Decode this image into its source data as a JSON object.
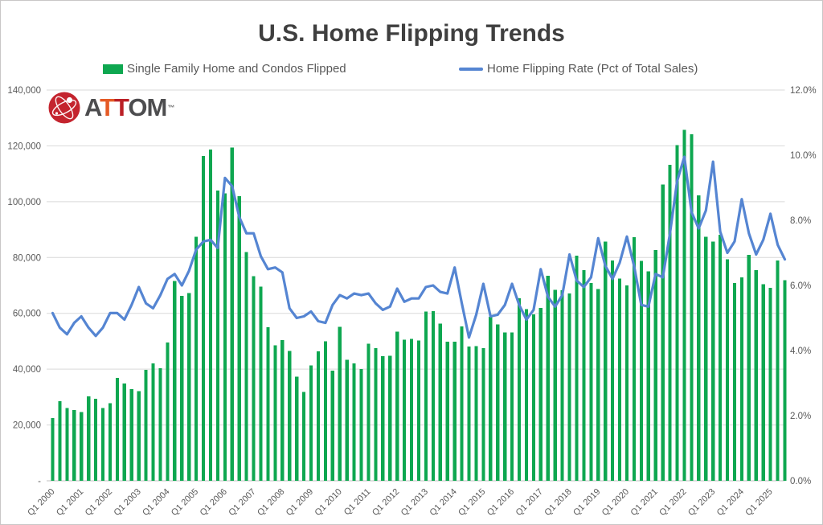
{
  "style": {
    "background": "#ffffff",
    "border_color": "#c9c7c7",
    "grid_color": "#d9d9d9",
    "baseline_color": "#c2c2c2",
    "axis_text_color": "#595959",
    "title_color": "#3f3f3f",
    "bar_color": "#0ea750",
    "line_color": "#5585d2"
  },
  "branding": {
    "logo_letters": [
      {
        "ch": "A",
        "color": "#4d4d4f"
      },
      {
        "ch": "T",
        "color": "#e55b26"
      },
      {
        "ch": "T",
        "color": "#bb2026"
      },
      {
        "ch": "O",
        "color": "#4d4d4f"
      },
      {
        "ch": "M",
        "color": "#4d4d4f"
      }
    ],
    "trademark": "™",
    "icon_color": "#c4242e"
  },
  "chart_data": {
    "type": "combo-bar-line",
    "title": "U.S. Home Flipping Trends",
    "grid": true,
    "legend_position": "top",
    "x_tick_every": 4,
    "left_axis": {
      "min": 0,
      "max": 140000,
      "step": 20000,
      "tick_labels_bottom_to_top": [
        "-",
        "20,000",
        "40,000",
        "60,000",
        "80,000",
        "100,000",
        "120,000",
        "140,000"
      ]
    },
    "right_axis": {
      "min": 0,
      "max": 12,
      "step": 2,
      "tick_labels_bottom_to_top": [
        "0.0%",
        "2.0%",
        "4.0%",
        "6.0%",
        "8.0%",
        "10.0%",
        "12.0%"
      ]
    },
    "categories": [
      "Q1 2000",
      "Q2 2000",
      "Q3 2000",
      "Q4 2000",
      "Q1 2001",
      "Q2 2001",
      "Q3 2001",
      "Q4 2001",
      "Q1 2002",
      "Q2 2002",
      "Q3 2002",
      "Q4 2002",
      "Q1 2003",
      "Q2 2003",
      "Q3 2003",
      "Q4 2003",
      "Q1 2004",
      "Q2 2004",
      "Q3 2004",
      "Q4 2004",
      "Q1 2005",
      "Q2 2005",
      "Q3 2005",
      "Q4 2005",
      "Q1 2006",
      "Q2 2006",
      "Q3 2006",
      "Q4 2006",
      "Q1 2007",
      "Q2 2007",
      "Q3 2007",
      "Q4 2007",
      "Q1 2008",
      "Q2 2008",
      "Q3 2008",
      "Q4 2008",
      "Q1 2009",
      "Q2 2009",
      "Q3 2009",
      "Q4 2009",
      "Q1 2010",
      "Q2 2010",
      "Q3 2010",
      "Q4 2010",
      "Q1 2011",
      "Q2 2011",
      "Q3 2011",
      "Q4 2011",
      "Q1 2012",
      "Q2 2012",
      "Q3 2012",
      "Q4 2012",
      "Q1 2013",
      "Q2 2013",
      "Q3 2013",
      "Q4 2013",
      "Q1 2014",
      "Q2 2014",
      "Q3 2014",
      "Q4 2014",
      "Q1 2015",
      "Q2 2015",
      "Q3 2015",
      "Q4 2015",
      "Q1 2016",
      "Q2 2016",
      "Q3 2016",
      "Q4 2016",
      "Q1 2017",
      "Q2 2017",
      "Q3 2017",
      "Q4 2017",
      "Q1 2018",
      "Q2 2018",
      "Q3 2018",
      "Q4 2018",
      "Q1 2019",
      "Q2 2019",
      "Q3 2019",
      "Q4 2019",
      "Q1 2020",
      "Q2 2020",
      "Q3 2020",
      "Q4 2020",
      "Q1 2021",
      "Q2 2021",
      "Q3 2021",
      "Q4 2021",
      "Q1 2022",
      "Q2 2022",
      "Q3 2022",
      "Q4 2022",
      "Q1 2023",
      "Q2 2023",
      "Q3 2023",
      "Q4 2023",
      "Q1 2024",
      "Q2 2024",
      "Q3 2024",
      "Q4 2024",
      "Q1 2025",
      "Q2 2025",
      "Q3 2025"
    ],
    "series": [
      {
        "name": "Single Family Home and Condos Flipped",
        "type": "bar",
        "axis": "left",
        "color": "#0ea750",
        "values": [
          22400,
          28500,
          26000,
          25300,
          24600,
          30300,
          29400,
          26000,
          27800,
          36900,
          34800,
          32900,
          32100,
          39800,
          42100,
          40400,
          49500,
          71600,
          66300,
          67300,
          87500,
          116400,
          118700,
          104000,
          103000,
          119400,
          102000,
          82000,
          73300,
          69500,
          55000,
          48500,
          50400,
          46500,
          37300,
          31800,
          41400,
          46400,
          50000,
          39500,
          55100,
          43300,
          42100,
          40100,
          49100,
          47600,
          44600,
          44800,
          53400,
          50500,
          50800,
          50200,
          60600,
          60800,
          56300,
          49800,
          49800,
          55300,
          48100,
          48300,
          47600,
          58700,
          56000,
          53100,
          53100,
          65400,
          61500,
          59600,
          62000,
          73500,
          68400,
          68300,
          67100,
          80700,
          75500,
          70800,
          68700,
          85700,
          79000,
          72400,
          70000,
          87300,
          78800,
          75000,
          82700,
          106200,
          113200,
          120300,
          125700,
          124200,
          102300,
          87500,
          85700,
          88100,
          79300,
          70900,
          72900,
          81000,
          75500,
          70500,
          69200,
          79000,
          71900
        ]
      },
      {
        "name": "Home Flipping Rate (Pct of Total Sales)",
        "type": "line",
        "axis": "right",
        "color": "#5585d2",
        "values": [
          5.15,
          4.7,
          4.5,
          4.85,
          5.05,
          4.7,
          4.45,
          4.7,
          5.15,
          5.15,
          4.95,
          5.4,
          5.95,
          5.45,
          5.3,
          5.7,
          6.2,
          6.35,
          6.0,
          6.45,
          7.1,
          7.35,
          7.4,
          7.15,
          9.3,
          9.05,
          8.1,
          7.6,
          7.6,
          6.9,
          6.5,
          6.55,
          6.4,
          5.3,
          5.0,
          5.05,
          5.2,
          4.9,
          4.85,
          5.4,
          5.7,
          5.6,
          5.75,
          5.7,
          5.75,
          5.45,
          5.25,
          5.35,
          5.9,
          5.5,
          5.6,
          5.6,
          5.95,
          6.0,
          5.8,
          5.75,
          6.55,
          5.45,
          4.4,
          5.1,
          6.05,
          5.05,
          5.1,
          5.4,
          6.05,
          5.4,
          4.95,
          5.25,
          6.5,
          5.65,
          5.35,
          5.7,
          6.95,
          6.15,
          5.95,
          6.25,
          7.45,
          6.6,
          6.2,
          6.7,
          7.5,
          6.6,
          5.4,
          5.35,
          6.35,
          6.25,
          7.6,
          9.2,
          9.95,
          8.25,
          7.75,
          8.3,
          9.8,
          7.65,
          7.0,
          7.35,
          8.65,
          7.6,
          6.95,
          7.4,
          8.2,
          7.25,
          6.8
        ]
      }
    ]
  }
}
